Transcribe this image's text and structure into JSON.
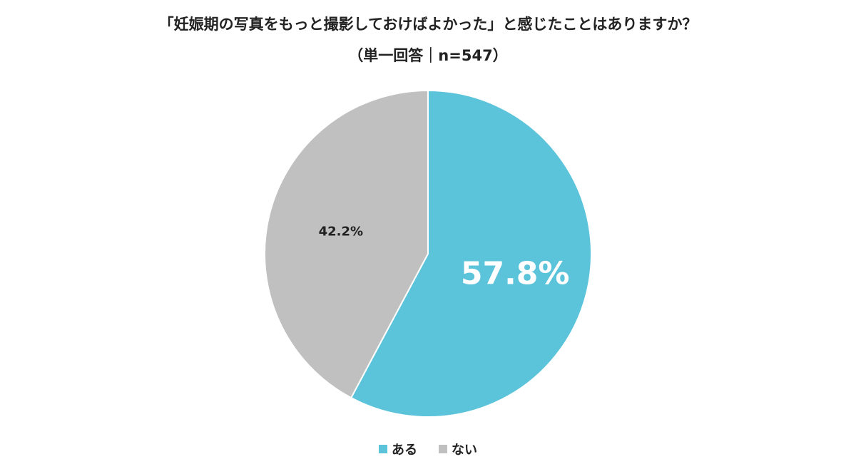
{
  "chart_data": {
    "type": "pie",
    "title": "「妊娠期の写真をもっと撮影しておけばよかった」と感じたことはありますか？",
    "subtitle": "（単一回答｜n=547）",
    "categories": [
      "ある",
      "ない"
    ],
    "values": [
      57.8,
      42.2
    ],
    "data_labels": [
      "57.8%",
      "42.2%"
    ],
    "colors": [
      "#5bc3da",
      "#c0c0c0"
    ],
    "legend_position": "bottom-center"
  }
}
